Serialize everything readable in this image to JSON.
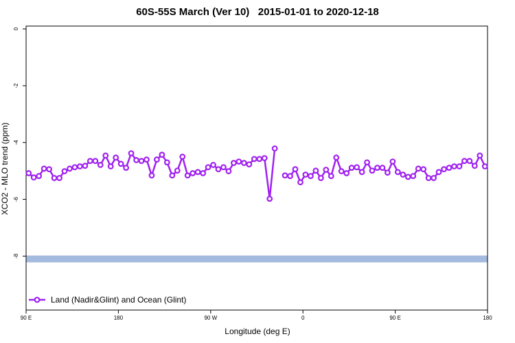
{
  "chart_data": {
    "type": "line",
    "title": "60S-55S March (Ver 10)   2015-01-01 to 2020-12-18",
    "xlabel": "Longitude (deg E)",
    "ylabel": "XCO2 - MLO trend (ppm)",
    "xlim": [
      90,
      540
    ],
    "xticks": [
      {
        "value": 90,
        "label": "90 E"
      },
      180,
      {
        "value": 270,
        "label": "90 W"
      },
      {
        "value": 360,
        "label": "0"
      },
      {
        "value": 450,
        "label": "90 E"
      },
      {
        "value": 540,
        "label": "180"
      }
    ],
    "ylim": [
      -9.9,
      0.1
    ],
    "yticks": [
      0,
      -2,
      -4,
      -6,
      -8
    ],
    "x": [
      92.5,
      97.5,
      102.5,
      107.5,
      112.5,
      117.5,
      122.5,
      127.5,
      132.5,
      137.5,
      142.5,
      147.5,
      152.5,
      157.5,
      162.5,
      167.5,
      172.5,
      177.5,
      182.5,
      187.5,
      192.5,
      197.5,
      202.5,
      207.5,
      212.5,
      217.5,
      222.5,
      227.5,
      232.5,
      237.5,
      242.5,
      247.5,
      252.5,
      257.5,
      262.5,
      267.5,
      272.5,
      277.5,
      282.5,
      287.5,
      292.5,
      297.5,
      302.5,
      307.5,
      312.5,
      317.5,
      322.5,
      327.5,
      332.5,
      337.5,
      342.5,
      347.5,
      352.5,
      357.5,
      362.5,
      367.5,
      372.5,
      377.5,
      382.5,
      387.5,
      392.5,
      397.5,
      402.5,
      407.5,
      412.5,
      417.5,
      422.5,
      427.5,
      432.5,
      437.5,
      442.5,
      447.5,
      452.5,
      457.5,
      462.5,
      467.5,
      472.5,
      477.5,
      482.5,
      487.5,
      492.5,
      497.5,
      502.5,
      507.5,
      512.5,
      517.5,
      522.5,
      527.5,
      532.5,
      537.5
    ],
    "series": [
      {
        "name": "Land (Nadir&Glint) and Ocean (Glint)",
        "color": "#a020f0",
        "values": [
          -5.08,
          -5.23,
          -5.18,
          -4.92,
          -4.94,
          -5.25,
          -5.25,
          -5.01,
          -4.92,
          -4.87,
          -4.84,
          -4.82,
          -4.65,
          -4.65,
          -4.79,
          -4.46,
          -4.84,
          -4.53,
          -4.75,
          -4.89,
          -4.38,
          -4.62,
          -4.65,
          -4.6,
          -5.16,
          -4.6,
          -4.43,
          -4.7,
          -5.16,
          -4.99,
          -4.5,
          -5.16,
          -5.08,
          -5.04,
          -5.08,
          -4.87,
          -4.79,
          -4.94,
          -4.87,
          -5.01,
          -4.72,
          -4.67,
          -4.72,
          -4.77,
          -4.58,
          -4.58,
          -4.55,
          -5.98,
          -4.21,
          null,
          -5.16,
          -5.18,
          -4.94,
          -5.4,
          -5.13,
          -5.18,
          -4.99,
          -5.25,
          -4.96,
          -5.18,
          -4.53,
          -5.01,
          -5.08,
          -4.89,
          -4.87,
          -5.04,
          -4.7,
          -4.99,
          -4.89,
          -4.89,
          -5.06,
          -4.67,
          -5.04,
          -5.13,
          -5.21,
          -5.18,
          -4.92,
          -4.94,
          -5.25,
          -5.25,
          -5.04,
          -4.94,
          -4.89,
          -4.84,
          -4.84,
          -4.65,
          -4.65,
          -4.82,
          -4.46,
          -4.84
        ]
      }
    ],
    "band": {
      "y": -8.1,
      "color": "#a4bade"
    },
    "legend": "bottom-left"
  }
}
